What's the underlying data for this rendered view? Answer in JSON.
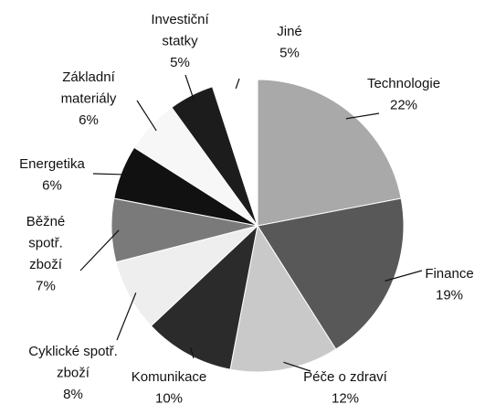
{
  "chart_data": {
    "type": "pie",
    "categories": [
      "Technologie",
      "Finance",
      "Péče o zdraví",
      "Komunikace",
      "Cyklické spotř.\nzboží",
      "Běžné\nspotř.\nzboží",
      "Energetika",
      "Základní\nmateriály",
      "Investiční\nstatky",
      "Jiné"
    ],
    "values": [
      22,
      19,
      12,
      10,
      8,
      7,
      6,
      6,
      5,
      5
    ],
    "value_labels": [
      "22%",
      "19%",
      "12%",
      "10%",
      "8%",
      "7%",
      "6%",
      "6%",
      "5%",
      "5%"
    ],
    "colors": [
      "#a9a9a9",
      "#585858",
      "#c9c9c9",
      "#2b2b2b",
      "#eeeeee",
      "#7a7a7a",
      "#111111",
      "#f7f7f7",
      "#1c1c1c",
      "#ffffff"
    ]
  }
}
